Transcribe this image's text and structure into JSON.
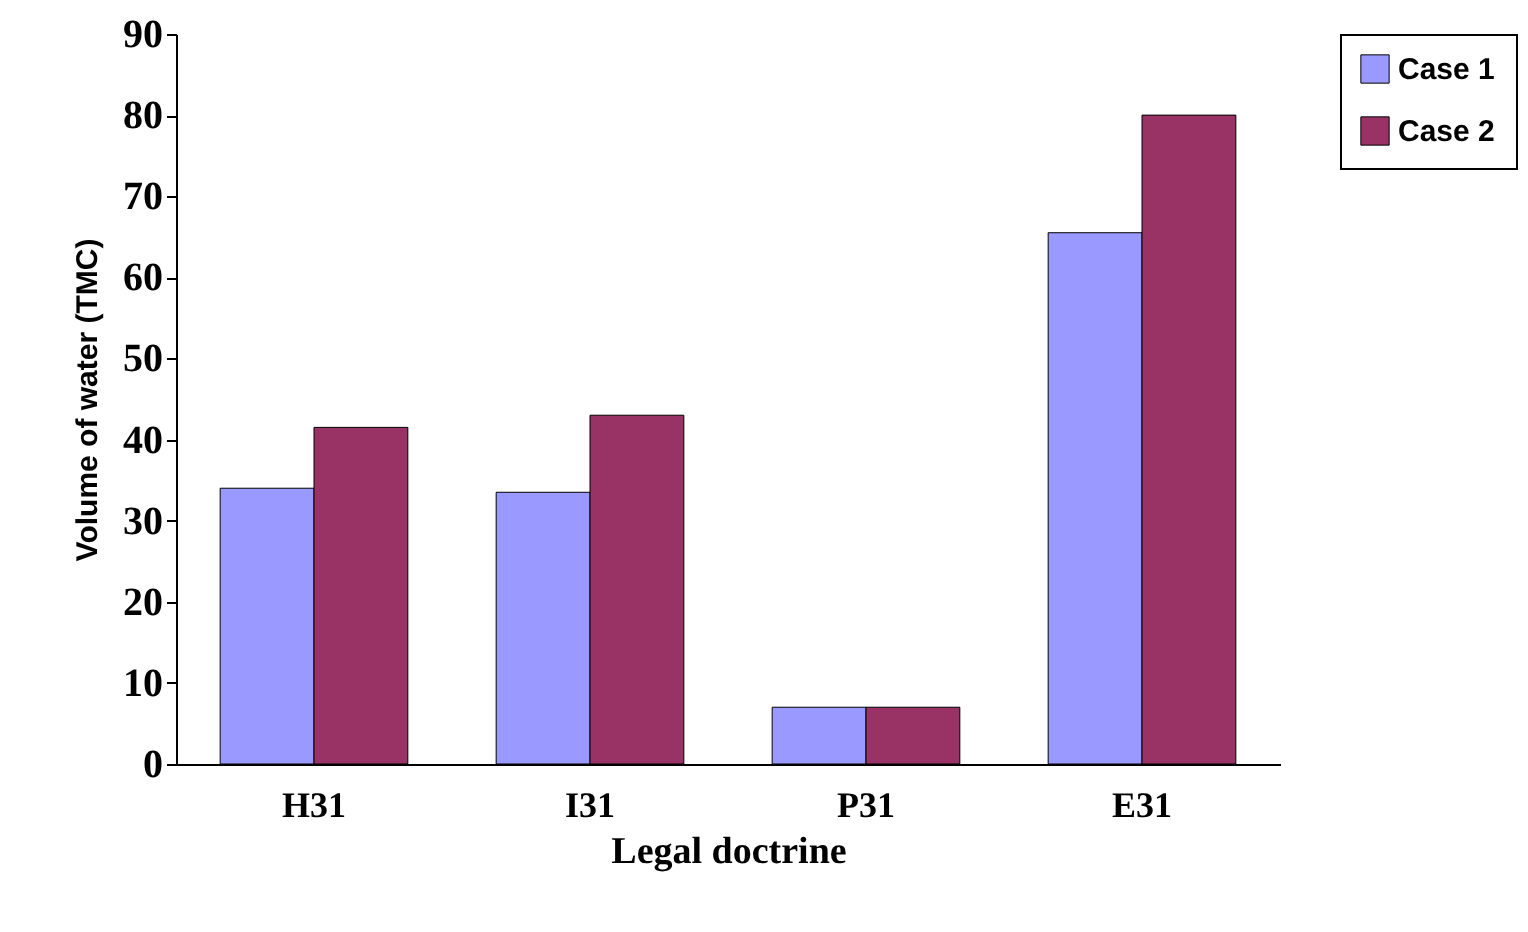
{
  "chart_data": {
    "type": "bar",
    "xlabel": "Legal doctrine",
    "ylabel": "Volume of water (TMC)",
    "categories": [
      "H31",
      "I31",
      "P31",
      "E31"
    ],
    "series": [
      {
        "name": "Case 1",
        "color": "#9999ff",
        "values": [
          34,
          33.5,
          7,
          65.5
        ]
      },
      {
        "name": "Case 2",
        "color": "#993366",
        "values": [
          41.5,
          43,
          7,
          80
        ]
      }
    ],
    "ylim": [
      0,
      90
    ],
    "yticks": [
      0,
      10,
      20,
      30,
      40,
      50,
      60,
      70,
      80,
      90
    ],
    "grid": false,
    "legend": "right"
  }
}
